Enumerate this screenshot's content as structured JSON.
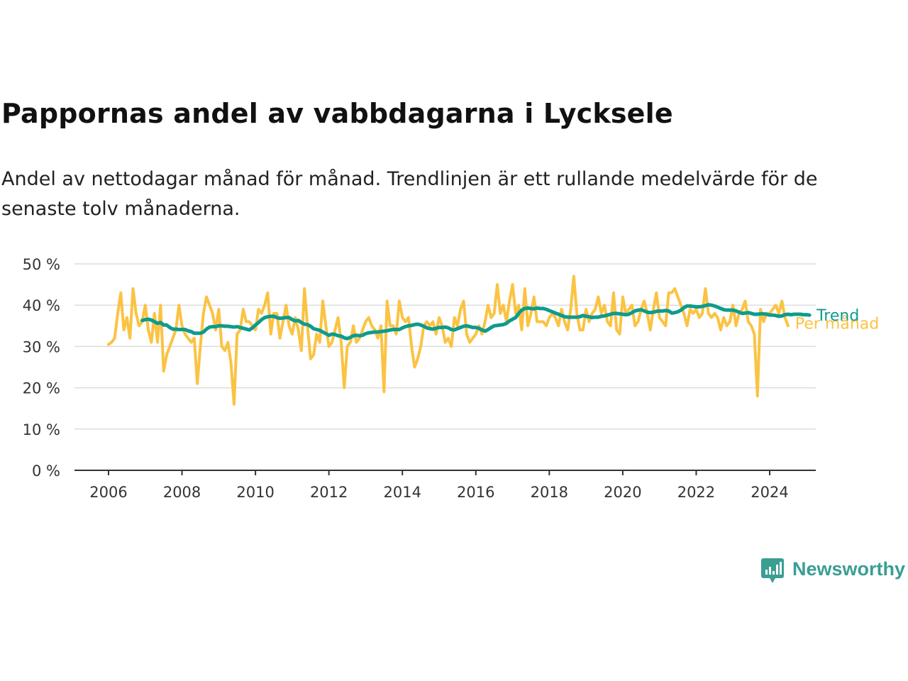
{
  "title": "Pappornas andel av vabbdagarna i Lycksele",
  "subtitle": "Andel av nettodagar månad för månad. Trendlinjen är ett rullande medelvärde för de senaste tolv månaderna.",
  "brand": {
    "name": "Newsworthy",
    "color": "#3a9e93"
  },
  "colors": {
    "trend": "#0e9b8c",
    "monthly": "#fbc343",
    "grid": "#dddddd",
    "axis": "#333333"
  },
  "chart_data": {
    "type": "line",
    "title": "Pappornas andel av vabbdagarna i Lycksele",
    "xlabel": "",
    "ylabel": "",
    "x_range": [
      2006,
      2024.5
    ],
    "ylim": [
      0,
      50
    ],
    "yticks": [
      0,
      10,
      20,
      30,
      40,
      50
    ],
    "ytick_labels": [
      "0 %",
      "10 %",
      "20 %",
      "30 %",
      "40 %",
      "50 %"
    ],
    "xticks": [
      2006,
      2008,
      2010,
      2012,
      2014,
      2016,
      2018,
      2020,
      2022,
      2024
    ],
    "xtick_labels": [
      "2006",
      "2008",
      "2010",
      "2012",
      "2014",
      "2016",
      "2018",
      "2020",
      "2022",
      "2024"
    ],
    "grid": true,
    "legend": "inline labels at right end of lines",
    "series": [
      {
        "name": "Per månad",
        "color": "#fbc343",
        "start": "2006-01",
        "interval": "month",
        "values": [
          30.5,
          31,
          32,
          38,
          43,
          34,
          37,
          32,
          44,
          38,
          35,
          36,
          40,
          34,
          31,
          38,
          31,
          40,
          24,
          28,
          30,
          32,
          34,
          40,
          35,
          33,
          32,
          31,
          32,
          21,
          30,
          38,
          42,
          40,
          38,
          34,
          39,
          30,
          29,
          31,
          26,
          16,
          33,
          34,
          39,
          36,
          36,
          35,
          34,
          39,
          38,
          40,
          43,
          33,
          38,
          38,
          32,
          36,
          40,
          35,
          33,
          37,
          34,
          29,
          44,
          35,
          27,
          28,
          33,
          31,
          41,
          35,
          30,
          31,
          34,
          37,
          31,
          20,
          30,
          31,
          35,
          31,
          32,
          34,
          36,
          37,
          35,
          34,
          32,
          35,
          19,
          41,
          35,
          35,
          33,
          41,
          37,
          36,
          37,
          30,
          25,
          27,
          30,
          35,
          36,
          35,
          36,
          33,
          37,
          35,
          31,
          32,
          30,
          37,
          35,
          39,
          41,
          33,
          31,
          32,
          33,
          35,
          33,
          36,
          40,
          37,
          38,
          45,
          38,
          40,
          36,
          41,
          45,
          38,
          40,
          34,
          44,
          35,
          38,
          42,
          36,
          36,
          36,
          35,
          37,
          38,
          37,
          35,
          39,
          36,
          34,
          39,
          47,
          38,
          34,
          34,
          39,
          36,
          38,
          39,
          42,
          38,
          40,
          36,
          35,
          43,
          34,
          33,
          42,
          38,
          39,
          40,
          35,
          36,
          39,
          41,
          38,
          34,
          39,
          43,
          37,
          36,
          35,
          43,
          43,
          44,
          42,
          40,
          38,
          35,
          39,
          38,
          39,
          37,
          38,
          44,
          38,
          37,
          38,
          37,
          34,
          37,
          35,
          36,
          40,
          35,
          38,
          39,
          41,
          36,
          35,
          33,
          18,
          39,
          36,
          38,
          38,
          39,
          40,
          38,
          41,
          37,
          35
        ]
      },
      {
        "name": "Trend",
        "color": "#0e9b8c",
        "start": "2006-12",
        "interval": "month",
        "values": [
          36.3,
          36.5,
          36.6,
          36.4,
          36,
          35.6,
          35.8,
          35.2,
          35.2,
          34.6,
          34.2,
          34.2,
          34.1,
          34.1,
          34.1,
          33.8,
          33.6,
          33.2,
          33.2,
          33.2,
          33.5,
          34.2,
          34.7,
          34.8,
          34.8,
          35,
          35,
          34.9,
          34.9,
          34.8,
          34.7,
          34.8,
          34.6,
          34.4,
          34.2,
          34,
          34.5,
          35.2,
          35.8,
          36.5,
          37,
          37.2,
          37.3,
          37.3,
          37,
          36.8,
          36.9,
          37,
          37,
          36.5,
          36.2,
          36.3,
          35.8,
          35.4,
          35.3,
          34.9,
          34.3,
          34.1,
          33.9,
          33.5,
          33.1,
          32.7,
          33,
          32.9,
          32.6,
          32.5,
          32.1,
          31.9,
          32.2,
          32.6,
          32.7,
          32.6,
          32.7,
          33.1,
          33.3,
          33.4,
          33.5,
          33.5,
          33.6,
          33.7,
          33.8,
          34,
          34.1,
          34.1,
          34.1,
          34.5,
          34.8,
          35,
          35.1,
          35.3,
          35.4,
          35.2,
          34.9,
          34.5,
          34.3,
          34.2,
          34.4,
          34.6,
          34.6,
          34.7,
          34.5,
          34.1,
          34,
          34.3,
          34.6,
          34.9,
          35,
          34.8,
          34.6,
          34.6,
          34.4,
          34,
          33.7,
          34.1,
          34.6,
          35,
          35.1,
          35.2,
          35.3,
          35.6,
          36.2,
          36.6,
          37,
          38,
          38.8,
          39.2,
          39.3,
          39.2,
          39.1,
          39.3,
          39.2,
          39.2,
          39,
          38.7,
          38.4,
          38.1,
          37.8,
          37.5,
          37.2,
          37.1,
          37.1,
          37.1,
          37.1,
          37.2,
          37.5,
          37.3,
          37.2,
          37,
          37.1,
          37.1,
          37.3,
          37.4,
          37.6,
          37.8,
          38,
          38,
          37.9,
          37.8,
          37.7,
          37.8,
          38.2,
          38.6,
          38.8,
          38.9,
          38.6,
          38.3,
          38.2,
          38.3,
          38.5,
          38.6,
          38.6,
          38.7,
          38.6,
          38.1,
          38.2,
          38.4,
          38.8,
          39.4,
          39.8,
          39.8,
          39.7,
          39.6,
          39.6,
          39.7,
          39.9,
          40.1,
          40,
          39.8,
          39.5,
          39.2,
          38.9,
          38.8,
          38.8,
          38.8,
          38.6,
          38.3,
          38,
          38.1,
          38.2,
          38,
          37.8,
          37.8,
          37.9,
          37.9,
          37.8,
          37.6,
          37.6,
          37.5,
          37.3,
          37.4,
          37.7,
          37.8,
          37.7,
          37.8,
          37.8,
          37.8,
          37.7,
          37.7,
          37.6
        ]
      }
    ]
  }
}
